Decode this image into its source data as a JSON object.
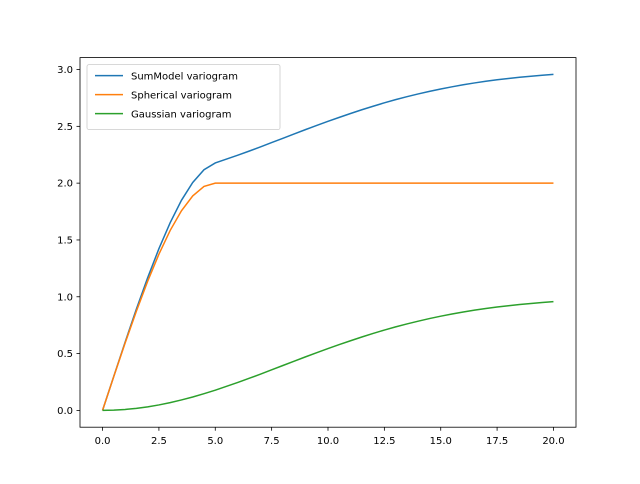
{
  "chart_data": {
    "type": "line",
    "x": [
      0,
      0.5,
      1,
      1.5,
      2,
      2.5,
      3,
      3.5,
      4,
      4.5,
      5,
      5.5,
      6,
      6.5,
      7,
      7.5,
      8,
      8.5,
      9,
      9.5,
      10,
      10.5,
      11,
      11.5,
      12,
      12.5,
      13,
      13.5,
      14,
      14.5,
      15,
      15.5,
      16,
      16.5,
      17,
      17.5,
      18,
      18.5,
      19,
      19.5,
      20
    ],
    "series": [
      {
        "name": "SumModel variogram",
        "color": "#1f77b4",
        "values": [
          0,
          0.301,
          0.6,
          0.891,
          1.167,
          1.423,
          1.652,
          1.849,
          2.006,
          2.118,
          2.178,
          2.212,
          2.246,
          2.282,
          2.319,
          2.357,
          2.395,
          2.433,
          2.471,
          2.508,
          2.544,
          2.579,
          2.613,
          2.646,
          2.677,
          2.707,
          2.735,
          2.761,
          2.785,
          2.808,
          2.829,
          2.848,
          2.866,
          2.882,
          2.897,
          2.91,
          2.921,
          2.932,
          2.941,
          2.95,
          2.957
        ]
      },
      {
        "name": "Spherical variogram",
        "color": "#ff7f0e",
        "values": [
          0,
          0.299,
          0.592,
          0.873,
          1.136,
          1.375,
          1.584,
          1.757,
          1.888,
          1.971,
          2,
          2,
          2,
          2,
          2,
          2,
          2,
          2,
          2,
          2,
          2,
          2,
          2,
          2,
          2,
          2,
          2,
          2,
          2,
          2,
          2,
          2,
          2,
          2,
          2,
          2,
          2,
          2,
          2,
          2,
          2
        ]
      },
      {
        "name": "Gaussian variogram",
        "color": "#2ca02c",
        "values": [
          0,
          0.002,
          0.008,
          0.018,
          0.031,
          0.048,
          0.068,
          0.092,
          0.118,
          0.147,
          0.178,
          0.212,
          0.246,
          0.282,
          0.319,
          0.357,
          0.395,
          0.433,
          0.471,
          0.508,
          0.544,
          0.579,
          0.613,
          0.646,
          0.677,
          0.707,
          0.735,
          0.761,
          0.785,
          0.808,
          0.829,
          0.848,
          0.866,
          0.882,
          0.897,
          0.91,
          0.921,
          0.932,
          0.941,
          0.95,
          0.957
        ]
      }
    ],
    "xlim": [
      -1,
      21
    ],
    "xticks": [
      {
        "value": 0,
        "label": "0.0"
      },
      2.5,
      {
        "value": 5,
        "label": "5.0"
      },
      7.5,
      {
        "value": 10,
        "label": "10.0"
      },
      12.5,
      {
        "value": 15,
        "label": "15.0"
      },
      17.5,
      {
        "value": 20,
        "label": "20.0"
      }
    ],
    "ylim": [
      -0.148,
      3.105
    ],
    "yticks": [
      {
        "value": 0,
        "label": "0.0"
      },
      0.5,
      {
        "value": 1,
        "label": "1.0"
      },
      1.5,
      {
        "value": 2,
        "label": "2.0"
      },
      2.5,
      {
        "value": 3,
        "label": "3.0"
      }
    ],
    "legend": "upper left"
  }
}
